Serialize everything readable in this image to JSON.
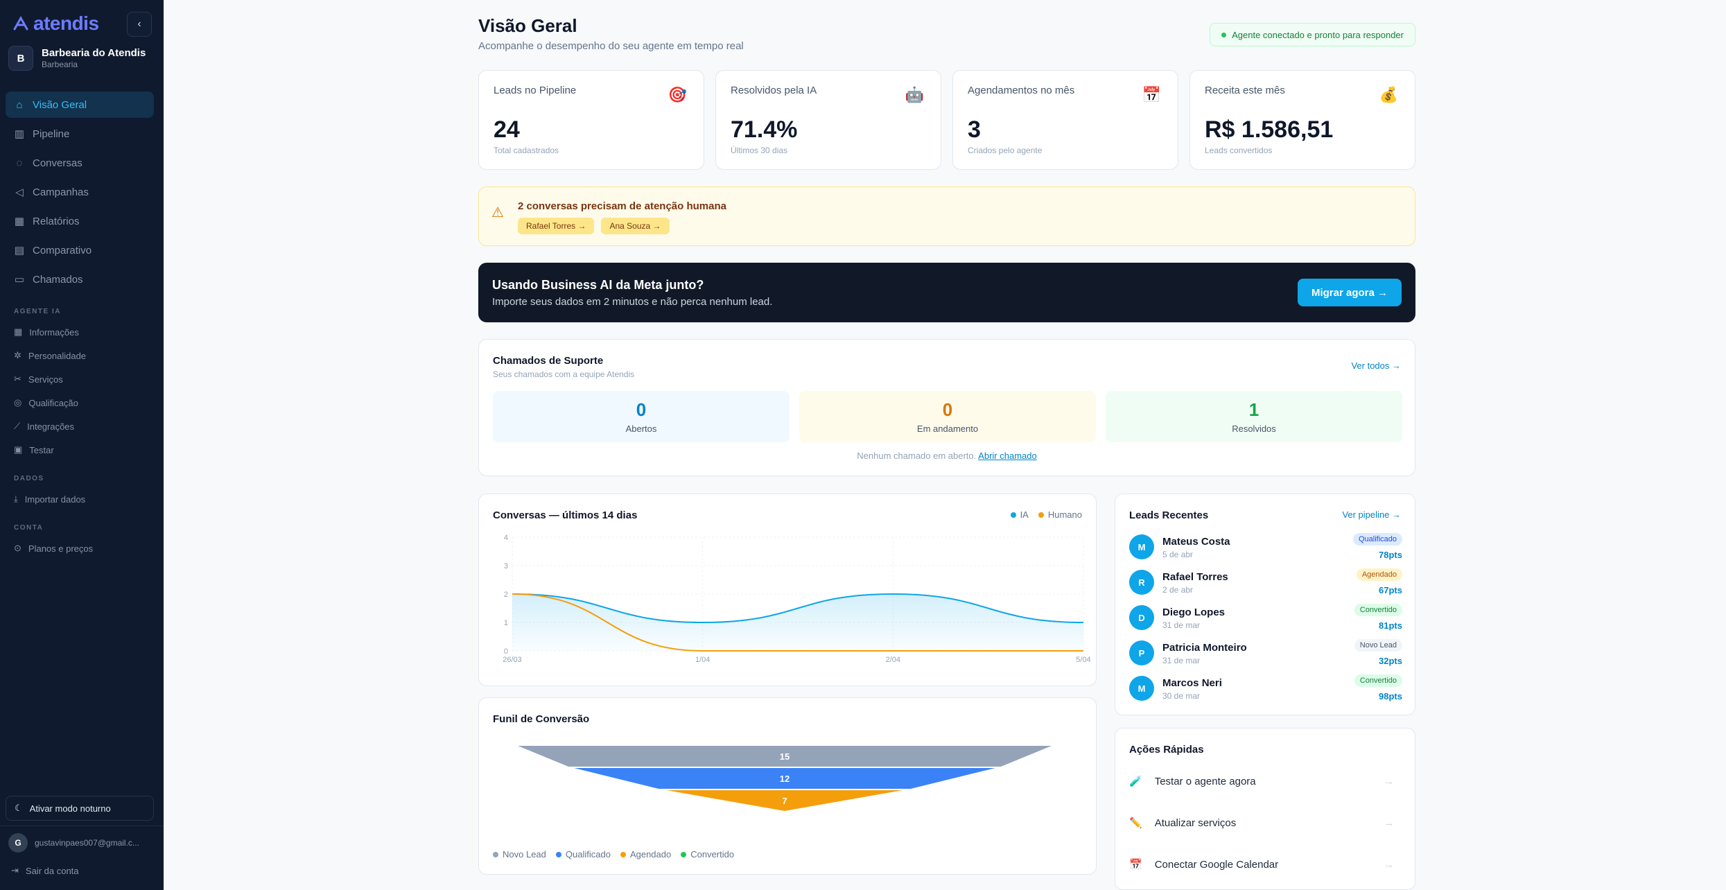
{
  "brand": {
    "name": "atendis",
    "accent": "#6d7cff"
  },
  "workspace": {
    "initial": "B",
    "name": "Barbearia do Atendis",
    "type": "Barbearia"
  },
  "nav": [
    {
      "label": "Visão Geral",
      "icon": "home-icon",
      "active": true
    },
    {
      "label": "Pipeline",
      "icon": "columns-icon"
    },
    {
      "label": "Conversas",
      "icon": "chat-icon"
    },
    {
      "label": "Campanhas",
      "icon": "megaphone-icon"
    },
    {
      "label": "Relatórios",
      "icon": "bar-chart-icon"
    },
    {
      "label": "Comparativo",
      "icon": "clipboard-icon"
    },
    {
      "label": "Chamados",
      "icon": "ticket-icon"
    }
  ],
  "sections": {
    "agent": "AGENTE IA",
    "data": "DADOS",
    "account": "CONTA"
  },
  "agent_items": [
    "Informações",
    "Personalidade",
    "Serviços",
    "Qualificação",
    "Integrações",
    "Testar"
  ],
  "data_items": [
    "Importar dados"
  ],
  "account_items": [
    "Planos e preços"
  ],
  "footer": {
    "dark_mode": "Ativar modo noturno",
    "user_initial": "G",
    "user_email": "gustavinpaes007@gmail.c...",
    "logout": "Sair da conta"
  },
  "header": {
    "title": "Visão Geral",
    "subtitle": "Acompanhe o desempenho do seu agente em tempo real",
    "status": "Agente conectado e pronto para responder"
  },
  "kpis": [
    {
      "label": "Leads no Pipeline",
      "value": "24",
      "note": "Total cadastrados",
      "icon": "🎯"
    },
    {
      "label": "Resolvidos pela IA",
      "value": "71.4%",
      "note": "Últimos 30 dias",
      "icon": "🤖"
    },
    {
      "label": "Agendamentos no mês",
      "value": "3",
      "note": "Criados pelo agente",
      "icon": "📅"
    },
    {
      "label": "Receita este mês",
      "value": "R$ 1.586,51",
      "note": "Leads convertidos",
      "icon": "💰"
    }
  ],
  "alert": {
    "title": "2 conversas precisam de atenção humana",
    "chips": [
      "Rafael Torres →",
      "Ana Souza →"
    ]
  },
  "banner": {
    "title": "Usando Business AI da Meta junto?",
    "subtitle": "Importe seus dados em 2 minutos e não perca nenhum lead.",
    "button": "Migrar agora →"
  },
  "support": {
    "title": "Chamados de Suporte",
    "subtitle": "Seus chamados com a equipe Atendis",
    "link": "Ver todos →",
    "stats": [
      {
        "value": "0",
        "label": "Abertos",
        "color": "#0284c7",
        "bg": "#f0f9ff"
      },
      {
        "value": "0",
        "label": "Em andamento",
        "color": "#d97706",
        "bg": "#fffbeb"
      },
      {
        "value": "1",
        "label": "Resolvidos",
        "color": "#16a34a",
        "bg": "#f0fdf4"
      }
    ],
    "note": "Nenhum chamado em aberto.",
    "note_link": "Abrir chamado"
  },
  "chart_data": {
    "type": "area",
    "title": "Conversas — últimos 14 dias",
    "ylim": [
      0,
      4
    ],
    "yticks": [
      0,
      1,
      2,
      3,
      4
    ],
    "xticks": [
      "26/03",
      "1/04",
      "2/04",
      "5/04"
    ],
    "series": [
      {
        "name": "IA",
        "color": "#0ea5e9",
        "values": [
          2,
          1,
          2,
          1
        ]
      },
      {
        "name": "Humano",
        "color": "#f59e0b",
        "values": [
          2,
          0,
          0,
          0
        ]
      }
    ]
  },
  "funnel": {
    "title": "Funil de Conversão",
    "values": [
      15,
      12,
      7
    ],
    "colors": [
      "#94a3b8",
      "#3b82f6",
      "#f59e0b"
    ],
    "legend": [
      {
        "label": "Novo Lead",
        "color": "#94a3b8"
      },
      {
        "label": "Qualificado",
        "color": "#3b82f6"
      },
      {
        "label": "Agendado",
        "color": "#f59e0b"
      },
      {
        "label": "Convertido",
        "color": "#22c55e"
      }
    ]
  },
  "leads": {
    "title": "Leads Recentes",
    "link": "Ver pipeline →",
    "items": [
      {
        "initial": "M",
        "name": "Mateus Costa",
        "date": "5 de abr",
        "badge": "Qualificado",
        "badge_bg": "#dbeafe",
        "badge_fg": "#1d4ed8",
        "pts": "78pts"
      },
      {
        "initial": "R",
        "name": "Rafael Torres",
        "date": "2 de abr",
        "badge": "Agendado",
        "badge_bg": "#fef3c7",
        "badge_fg": "#b45309",
        "pts": "67pts"
      },
      {
        "initial": "D",
        "name": "Diego Lopes",
        "date": "31 de mar",
        "badge": "Convertido",
        "badge_bg": "#dcfce7",
        "badge_fg": "#15803d",
        "pts": "81pts"
      },
      {
        "initial": "P",
        "name": "Patricia Monteiro",
        "date": "31 de mar",
        "badge": "Novo Lead",
        "badge_bg": "#f1f5f9",
        "badge_fg": "#475569",
        "pts": "32pts"
      },
      {
        "initial": "M",
        "name": "Marcos Neri",
        "date": "30 de mar",
        "badge": "Convertido",
        "badge_bg": "#dcfce7",
        "badge_fg": "#15803d",
        "pts": "98pts"
      }
    ]
  },
  "quick": {
    "title": "Ações Rápidas",
    "items": [
      {
        "label": "Testar o agente agora",
        "icon": "🧪"
      },
      {
        "label": "Atualizar serviços",
        "icon": "✏️"
      },
      {
        "label": "Conectar Google Calendar",
        "icon": "📅"
      }
    ]
  }
}
